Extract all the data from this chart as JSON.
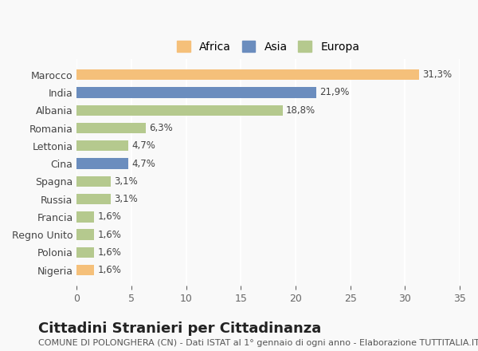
{
  "categories": [
    "Marocco",
    "India",
    "Albania",
    "Romania",
    "Lettonia",
    "Cina",
    "Spagna",
    "Russia",
    "Francia",
    "Regno Unito",
    "Polonia",
    "Nigeria"
  ],
  "values": [
    31.3,
    21.9,
    18.8,
    6.3,
    4.7,
    4.7,
    3.1,
    3.1,
    1.6,
    1.6,
    1.6,
    1.6
  ],
  "labels": [
    "31,3%",
    "21,9%",
    "18,8%",
    "6,3%",
    "4,7%",
    "4,7%",
    "3,1%",
    "3,1%",
    "1,6%",
    "1,6%",
    "1,6%",
    "1,6%"
  ],
  "continent": [
    "Africa",
    "Asia",
    "Europa",
    "Europa",
    "Europa",
    "Asia",
    "Europa",
    "Europa",
    "Europa",
    "Europa",
    "Europa",
    "Africa"
  ],
  "colors": {
    "Africa": "#F5C07A",
    "Asia": "#6B8DBE",
    "Europa": "#B5C98E"
  },
  "legend_order": [
    "Africa",
    "Asia",
    "Europa"
  ],
  "legend_colors": [
    "#F5C07A",
    "#6B8DBE",
    "#B5C98E"
  ],
  "xlim": [
    0,
    35
  ],
  "xticks": [
    0,
    5,
    10,
    15,
    20,
    25,
    30,
    35
  ],
  "title": "Cittadini Stranieri per Cittadinanza",
  "subtitle": "COMUNE DI POLONGHERA (CN) - Dati ISTAT al 1° gennaio di ogni anno - Elaborazione TUTTITALIA.IT",
  "background_color": "#f9f9f9",
  "plot_background": "#f9f9f9",
  "grid_color": "#ffffff",
  "title_fontsize": 13,
  "subtitle_fontsize": 8,
  "label_fontsize": 8.5,
  "tick_fontsize": 9
}
